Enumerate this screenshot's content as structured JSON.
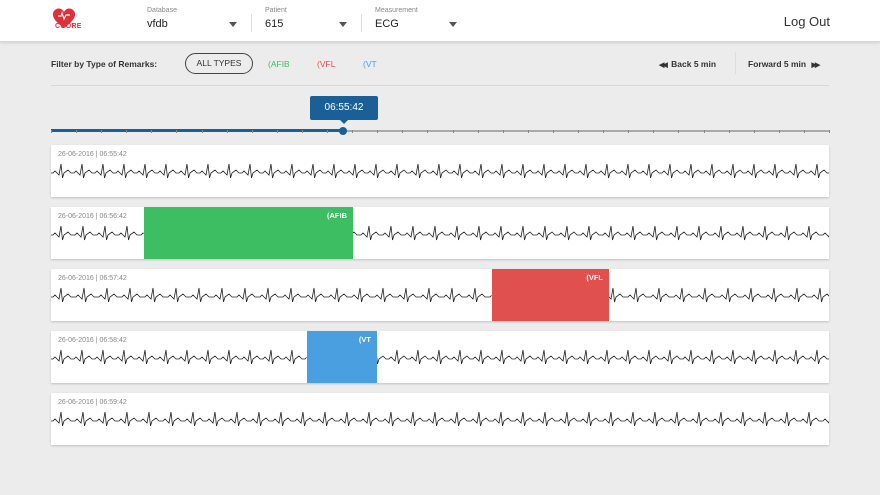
{
  "header": {
    "brand": "CUORE",
    "database": {
      "label": "Database",
      "value": "vfdb"
    },
    "patient": {
      "label": "Patient",
      "value": "615"
    },
    "measurement": {
      "label": "Measurement",
      "value": "ECG"
    },
    "logout_label": "Log Out"
  },
  "filter": {
    "label": "Filter by Type of Remarks:",
    "all_types": "ALL TYPES",
    "types": [
      {
        "label": "(AFIB",
        "color": "#3dbe62"
      },
      {
        "label": "(VFL",
        "color": "#e0504e"
      },
      {
        "label": "(VT",
        "color": "#4a9fe0"
      }
    ]
  },
  "nav": {
    "back_label": "Back 5 min",
    "forward_label": "Forward 5 min"
  },
  "timeline": {
    "current_time": "06:55:42",
    "progress": 0.375
  },
  "strips": [
    {
      "timestamp": "26-06-2016 | 06:55:42",
      "highlight": null
    },
    {
      "timestamp": "26-06-2016 | 06:56:42",
      "highlight": {
        "label": "(AFIB",
        "color": "#3dbe62",
        "start": 0.12,
        "end": 0.388
      }
    },
    {
      "timestamp": "26-06-2016 | 06:57:42",
      "highlight": {
        "label": "(VFL",
        "color": "#e0504e",
        "start": 0.567,
        "end": 0.717
      }
    },
    {
      "timestamp": "26-06-2016 | 06:58:42",
      "highlight": {
        "label": "(VT",
        "color": "#4a9fe0",
        "start": 0.329,
        "end": 0.419
      }
    },
    {
      "timestamp": "26-06-2016 | 06:59:42",
      "highlight": null
    }
  ]
}
